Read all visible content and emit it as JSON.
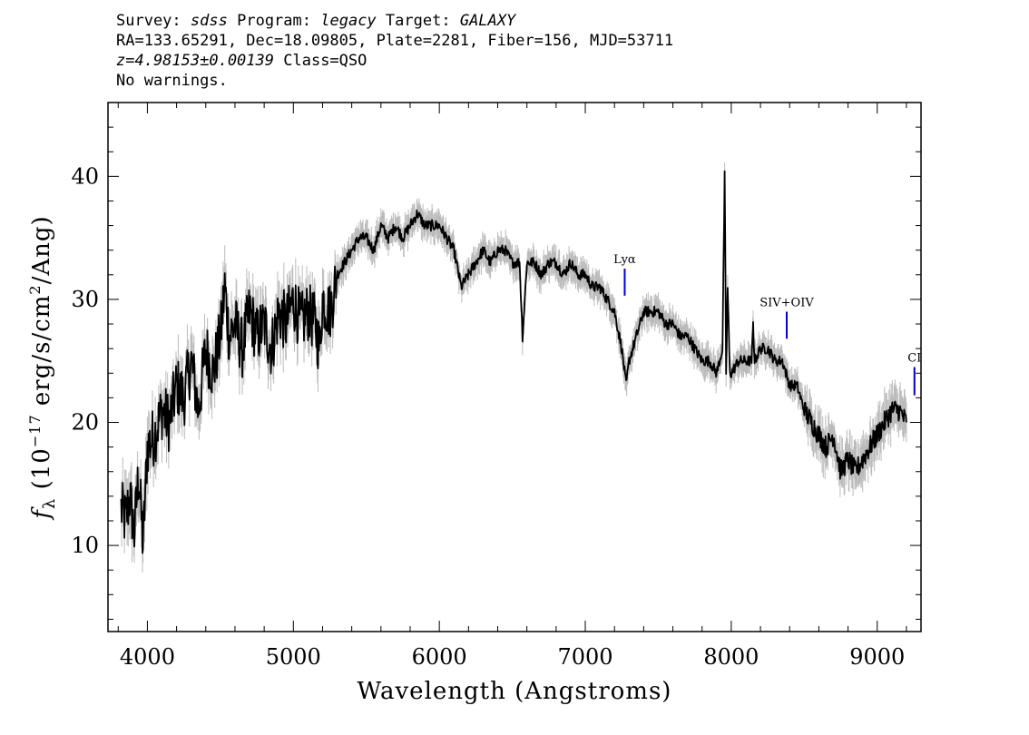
{
  "header": {
    "survey_label": "Survey:",
    "survey": "sdss",
    "program_label": "Program:",
    "program": "legacy",
    "target_label": "Target:",
    "target": "GALAXY",
    "line2": "RA=133.65291, Dec=18.09805, Plate=2281, Fiber=156, MJD=53711",
    "redshift": "z=4.98153±0.00139",
    "class_text": "Class=QSO",
    "warnings": "No warnings."
  },
  "chart_data": {
    "type": "line",
    "xlabel": "Wavelength (Angstroms)",
    "ylabel": "f_λ (10^-17 erg/s/cm^2/Ang)",
    "ylabel_parts": {
      "f": "f",
      "lambda": "λ",
      "pre": " (10",
      "exp1": "−17",
      "mid": " erg/s/cm",
      "exp2": "2",
      "post": "/Ang)"
    },
    "xlim": [
      3730,
      9300
    ],
    "ylim": [
      3,
      46
    ],
    "x_ticks": [
      4000,
      5000,
      6000,
      7000,
      8000,
      9000
    ],
    "y_ticks": [
      10,
      20,
      30,
      40
    ],
    "grid": false,
    "series": [
      {
        "role": "flux",
        "color": "#000000",
        "x": [
          3820,
          3850,
          3880,
          3910,
          3940,
          3970,
          4000,
          4050,
          4100,
          4150,
          4200,
          4250,
          4300,
          4350,
          4400,
          4450,
          4500,
          4530,
          4560,
          4600,
          4650,
          4700,
          4750,
          4800,
          4850,
          4900,
          4950,
          5000,
          5050,
          5100,
          5150,
          5180,
          5200,
          5250,
          5300,
          5350,
          5400,
          5450,
          5500,
          5550,
          5600,
          5650,
          5700,
          5750,
          5800,
          5850,
          5900,
          5950,
          6000,
          6050,
          6100,
          6150,
          6200,
          6250,
          6300,
          6350,
          6400,
          6450,
          6500,
          6550,
          6570,
          6600,
          6650,
          6700,
          6750,
          6800,
          6850,
          6900,
          6950,
          7000,
          7050,
          7100,
          7150,
          7200,
          7250,
          7280,
          7300,
          7350,
          7400,
          7450,
          7500,
          7550,
          7600,
          7650,
          7700,
          7750,
          7800,
          7850,
          7900,
          7940,
          7955,
          7965,
          7975,
          7990,
          8000,
          8050,
          8100,
          8140,
          8150,
          8160,
          8200,
          8250,
          8300,
          8350,
          8400,
          8450,
          8500,
          8550,
          8600,
          8650,
          8700,
          8750,
          8800,
          8850,
          8900,
          8950,
          9000,
          9050,
          9100,
          9150,
          9200
        ],
        "y": [
          13,
          12,
          14,
          11,
          16,
          10,
          18,
          19,
          21,
          20,
          23,
          22,
          25,
          21,
          26,
          24,
          27,
          31,
          27,
          28,
          26,
          29,
          27,
          28,
          26,
          29,
          28,
          30,
          28,
          29,
          28,
          26,
          30,
          29,
          32,
          33,
          34,
          35,
          35,
          34,
          36,
          35,
          36,
          35,
          36,
          37,
          36,
          36,
          36,
          35,
          34,
          31,
          32,
          33,
          34,
          33,
          34,
          34,
          33,
          33,
          27,
          33,
          33,
          32,
          33,
          33,
          32,
          33,
          32,
          32,
          31,
          31,
          30,
          29,
          26,
          23,
          25,
          27,
          29,
          29,
          29,
          28,
          28,
          27,
          27,
          26,
          25,
          25,
          24,
          26,
          40,
          24,
          31,
          24,
          24,
          25,
          25,
          25,
          28,
          25,
          26,
          26,
          25,
          25,
          23,
          23,
          21,
          20,
          19,
          18,
          19,
          16,
          17,
          16,
          17,
          18,
          19,
          20,
          21,
          21,
          20
        ],
        "noise_amplitude_blue": 2.5
      },
      {
        "role": "error",
        "color": "#bbbbbb",
        "spread": 0.9
      }
    ],
    "annotations": [
      {
        "label": "Lyα",
        "x": 7270,
        "y_top": 32.5,
        "y_bottom": 30.3,
        "color": "#0000cc"
      },
      {
        "label": "SIV+OIV",
        "x": 8380,
        "y_top": 29.0,
        "y_bottom": 26.8,
        "color": "#0000cc"
      },
      {
        "label": "CI",
        "x": 9255,
        "y_top": 24.5,
        "y_bottom": 22.2,
        "color": "#0000cc"
      }
    ]
  }
}
